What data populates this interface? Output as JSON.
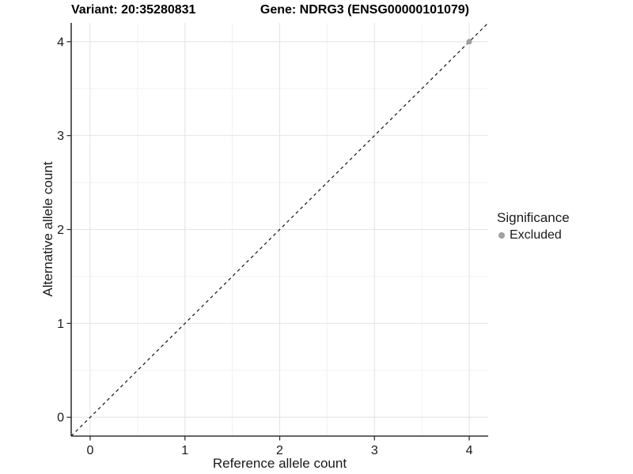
{
  "chart_data": {
    "type": "scatter",
    "title_left": "Variant: 20:35280831",
    "title_right": "Gene: NDRG3 (ENSG00000101079)",
    "xlabel": "Reference allele count",
    "ylabel": "Alternative allele count",
    "xlim": [
      -0.2,
      4.2
    ],
    "ylim": [
      -0.2,
      4.2
    ],
    "x_ticks": [
      0,
      1,
      2,
      3,
      4
    ],
    "y_ticks": [
      0,
      1,
      2,
      3,
      4
    ],
    "x_minor_ticks": [
      0.5,
      1.5,
      2.5,
      3.5
    ],
    "y_minor_ticks": [
      0.5,
      1.5,
      2.5,
      3.5
    ],
    "grid": true,
    "legend_position": "right",
    "identity_line": {
      "slope": 1,
      "intercept": 0,
      "style": "dashed"
    },
    "series": [
      {
        "name": "Excluded",
        "marker": "circle",
        "color": "#a0a0a0",
        "points": [
          {
            "x": 4,
            "y": 4
          }
        ]
      }
    ],
    "legend": {
      "title": "Significance",
      "entries": [
        {
          "label": "Excluded",
          "color": "#a0a0a0",
          "marker": "circle"
        }
      ]
    },
    "colors": {
      "grid_major": "#e4e4e4",
      "grid_minor": "#f1f1f1",
      "axis_line": "#333333",
      "tick_mark": "#333333",
      "tick_label": "#1a1a1a",
      "identity_line": "#111111",
      "panel_background": "#ffffff"
    }
  }
}
